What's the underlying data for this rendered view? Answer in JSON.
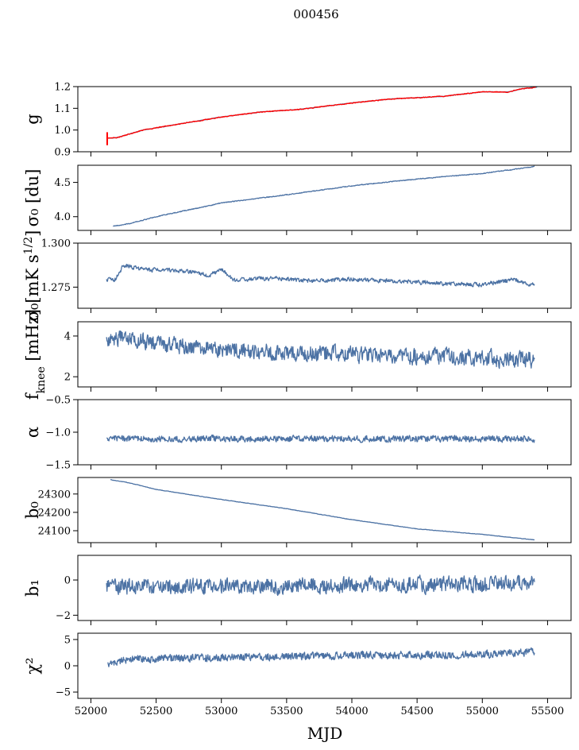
{
  "figure": {
    "title": "000456",
    "xlabel": "MJD"
  },
  "chart_data": {
    "type": "line",
    "xlim": [
      51900,
      55680
    ],
    "xticks": [
      52000,
      52500,
      53000,
      53500,
      54000,
      54500,
      55000,
      55500
    ],
    "x_range": [
      52120,
      55410
    ],
    "panels": [
      {
        "id": "g",
        "ylabel": "g",
        "ylim": [
          0.9,
          1.2
        ],
        "yticks": [
          0.9,
          1.0,
          1.1,
          1.2
        ],
        "ytick_labels": [
          "0.9",
          "1.0",
          "1.1",
          "1.2"
        ],
        "series": [
          {
            "color": "#4c72a4",
            "x_end": 55420,
            "anchors": [
              [
                52120,
                0.962
              ],
              [
                52200,
                0.965
              ],
              [
                52400,
                1.0
              ],
              [
                52700,
                1.03
              ],
              [
                53000,
                1.06
              ],
              [
                53300,
                1.083
              ],
              [
                53600,
                1.095
              ],
              [
                54000,
                1.125
              ],
              [
                54300,
                1.143
              ],
              [
                54700,
                1.155
              ],
              [
                55000,
                1.176
              ],
              [
                55200,
                1.175
              ],
              [
                55300,
                1.19
              ],
              [
                55420,
                1.198
              ]
            ],
            "noise": 0.001
          },
          {
            "color": "#ff0000",
            "x_end": 55410,
            "anchors": [
              [
                52120,
                0.962
              ],
              [
                52200,
                0.965
              ],
              [
                52400,
                1.0
              ],
              [
                52700,
                1.03
              ],
              [
                53000,
                1.06
              ],
              [
                53300,
                1.083
              ],
              [
                53600,
                1.095
              ],
              [
                54000,
                1.125
              ],
              [
                54300,
                1.143
              ],
              [
                54700,
                1.155
              ],
              [
                55000,
                1.176
              ],
              [
                55200,
                1.175
              ],
              [
                55300,
                1.19
              ],
              [
                55410,
                1.196
              ]
            ],
            "noise": 0.002,
            "spike": {
              "x": 52125,
              "low": 0.93,
              "high": 0.99
            }
          }
        ]
      },
      {
        "id": "sigma0_du",
        "ylabel": "σ₀ [du]",
        "ylim": [
          3.8,
          4.75
        ],
        "yticks": [
          4.0,
          4.5
        ],
        "ytick_labels": [
          "4.0",
          "4.5"
        ],
        "series": [
          {
            "color": "#4c72a4",
            "anchors": [
              [
                52170,
                3.86
              ],
              [
                52300,
                3.9
              ],
              [
                52500,
                4.0
              ],
              [
                53000,
                4.2
              ],
              [
                53500,
                4.32
              ],
              [
                54000,
                4.45
              ],
              [
                54500,
                4.55
              ],
              [
                55000,
                4.63
              ],
              [
                55400,
                4.73
              ]
            ],
            "noise": 0.006
          }
        ]
      },
      {
        "id": "sigma0_mK",
        "ylabel": "σ₀[mK s^1/2]",
        "ylim": [
          1.263,
          1.3
        ],
        "yticks": [
          1.275,
          1.3
        ],
        "ytick_labels": [
          "1.275",
          "1.300"
        ],
        "series": [
          {
            "color": "#4c72a4",
            "anchors": [
              [
                52120,
                1.2795
              ],
              [
                52180,
                1.2785
              ],
              [
                52250,
                1.2875
              ],
              [
                52400,
                1.285
              ],
              [
                52600,
                1.2845
              ],
              [
                52800,
                1.2835
              ],
              [
                52900,
                1.2815
              ],
              [
                53000,
                1.285
              ],
              [
                53100,
                1.279
              ],
              [
                53400,
                1.28
              ],
              [
                53700,
                1.2785
              ],
              [
                54000,
                1.2795
              ],
              [
                54300,
                1.2785
              ],
              [
                54700,
                1.277
              ],
              [
                55000,
                1.2765
              ],
              [
                55250,
                1.2795
              ],
              [
                55350,
                1.276
              ],
              [
                55400,
                1.2765
              ]
            ],
            "noise": 0.0012
          }
        ]
      },
      {
        "id": "fknee",
        "ylabel": "f_knee [mHz]",
        "ylim": [
          1.5,
          4.7
        ],
        "yticks": [
          2,
          4
        ],
        "ytick_labels": [
          "2",
          "4"
        ],
        "series": [
          {
            "color": "#4c72a4",
            "anchors": [
              [
                52120,
                3.9
              ],
              [
                52600,
                3.6
              ],
              [
                53000,
                3.3
              ],
              [
                54000,
                3.1
              ],
              [
                55000,
                2.9
              ],
              [
                55400,
                2.8
              ]
            ],
            "noise": 0.4
          }
        ]
      },
      {
        "id": "alpha",
        "ylabel": "α",
        "ylim": [
          -1.5,
          -0.5
        ],
        "yticks": [
          -1.5,
          -1.0,
          -0.5
        ],
        "ytick_labels": [
          "−1.5",
          "−1.0",
          "−0.5"
        ],
        "series": [
          {
            "color": "#4c72a4",
            "anchors": [
              [
                52120,
                -1.1
              ],
              [
                55400,
                -1.1
              ]
            ],
            "noise": 0.05
          }
        ]
      },
      {
        "id": "b0",
        "ylabel": "b₀",
        "ylim": [
          24035,
          24390
        ],
        "yticks": [
          24100,
          24200,
          24300
        ],
        "ytick_labels": [
          "24100",
          "24200",
          "24300"
        ],
        "series": [
          {
            "color": "#4c72a4",
            "anchors": [
              [
                52150,
                24378
              ],
              [
                52300,
                24360
              ],
              [
                52500,
                24325
              ],
              [
                53000,
                24270
              ],
              [
                53500,
                24220
              ],
              [
                54000,
                24160
              ],
              [
                54500,
                24110
              ],
              [
                55000,
                24080
              ],
              [
                55400,
                24050
              ]
            ],
            "noise": 1.2
          }
        ]
      },
      {
        "id": "b1",
        "ylabel": "b₁",
        "ylim": [
          -2.3,
          1.4
        ],
        "yticks": [
          -2,
          0
        ],
        "ytick_labels": [
          "−2",
          "0"
        ],
        "series": [
          {
            "color": "#4c72a4",
            "anchors": [
              [
                52120,
                -0.4
              ],
              [
                55400,
                -0.2
              ]
            ],
            "noise": 0.45
          }
        ]
      },
      {
        "id": "chi2",
        "ylabel": "χ²",
        "ylim": [
          -6.2,
          6.2
        ],
        "yticks": [
          -5,
          0,
          5
        ],
        "ytick_labels": [
          "−5",
          "0",
          "5"
        ],
        "series": [
          {
            "color": "#4c72a4",
            "anchors": [
              [
                52130,
                0.2
              ],
              [
                52300,
                1.3
              ],
              [
                53000,
                1.6
              ],
              [
                54000,
                2.0
              ],
              [
                55000,
                2.1
              ],
              [
                55400,
                2.6
              ]
            ],
            "noise": 0.75
          }
        ]
      }
    ]
  }
}
